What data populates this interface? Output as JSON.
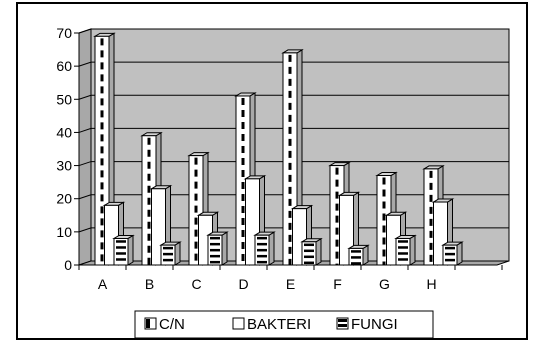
{
  "chart_data": {
    "type": "bar",
    "categories": [
      "A",
      "B",
      "C",
      "D",
      "E",
      "F",
      "G",
      "H"
    ],
    "series": [
      {
        "name": "C/N",
        "values": [
          69,
          39,
          33,
          51,
          64,
          30,
          27,
          29
        ],
        "pattern": "dashed-vertical"
      },
      {
        "name": "BAKTERI",
        "values": [
          18,
          23,
          15,
          26,
          17,
          21,
          15,
          19
        ],
        "pattern": "plain"
      },
      {
        "name": "FUNGI",
        "values": [
          8,
          6,
          9,
          9,
          7,
          5,
          8,
          6
        ],
        "pattern": "dashed-horizontal"
      }
    ],
    "y_ticks": [
      "0",
      "10",
      "20",
      "30",
      "40",
      "50",
      "60",
      "70"
    ],
    "ylim": [
      0,
      70
    ],
    "grid": true,
    "three_d": true,
    "legend_position": "bottom",
    "colors": {
      "bar_front": "#ffffff",
      "bar_side": "#a8a8a8",
      "bar_top": "#d4d4d4",
      "back_wall": "#c0c0c0",
      "floor": "#a8a8a8",
      "ink": "#000000"
    }
  }
}
